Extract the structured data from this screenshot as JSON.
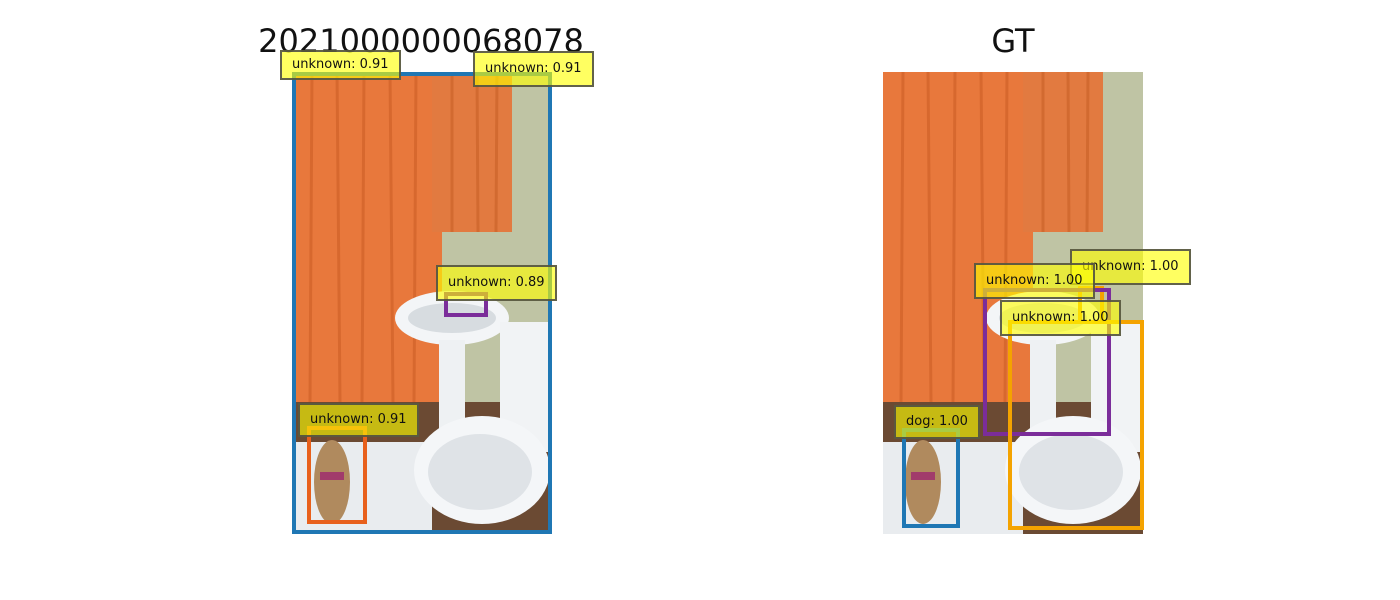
{
  "left_panel": {
    "title": "2021000000068078",
    "detections": [
      {
        "label": "unknown: 0.91",
        "color": "#1f77b4"
      },
      {
        "label": "unknown: 0.91",
        "color": "#1f77b4"
      },
      {
        "label": "unknown: 0.89",
        "color": "#7b2d9a"
      },
      {
        "label": "unknown: 0.91",
        "color": "#e8601c"
      }
    ]
  },
  "right_panel": {
    "title": "GT",
    "detections": [
      {
        "label": "unknown: 1.00",
        "color": "#f4a300"
      },
      {
        "label": "unknown: 1.00",
        "color": "#7b2d9a"
      },
      {
        "label": "unknown: 1.00",
        "color": "#f4a300"
      },
      {
        "label": "dog: 1.00",
        "color": "#1f77b4"
      }
    ]
  },
  "colors": {
    "label_background": "#ffff00",
    "curtain": "#e8783c",
    "wall": "#c9c8a0"
  }
}
